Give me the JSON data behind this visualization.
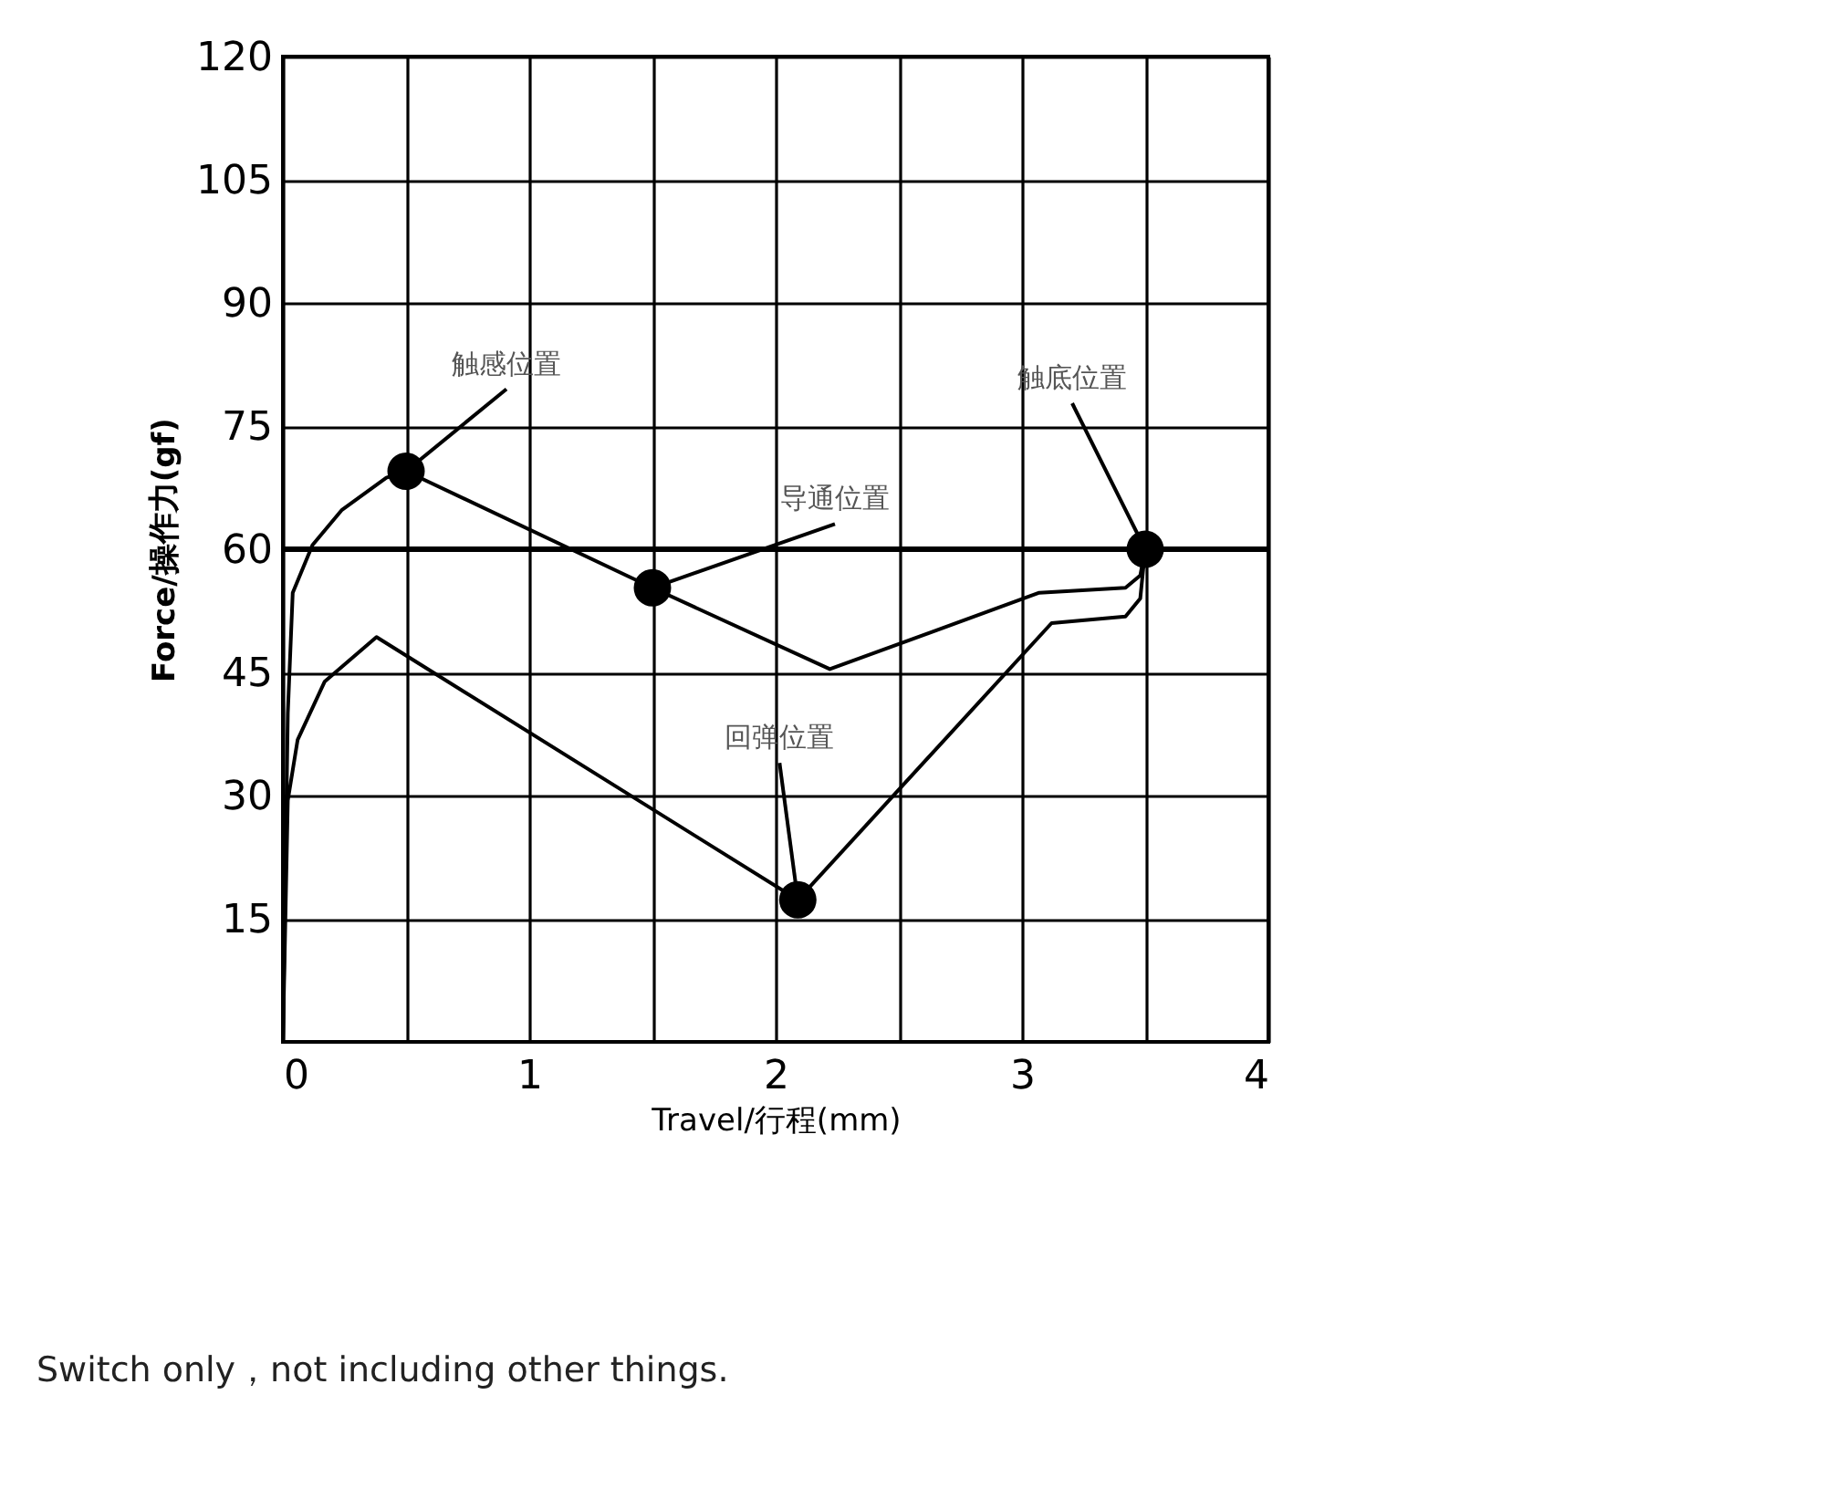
{
  "chart_data": {
    "type": "line",
    "xlabel": "Travel/行程(mm)",
    "ylabel": "Force/操作力(gf)",
    "xlim": [
      0,
      4
    ],
    "ylim": [
      0,
      120
    ],
    "xticks": [
      0,
      {
        "value": 0.5,
        "label": null
      },
      1,
      {
        "value": 1.5,
        "label": null
      },
      2,
      {
        "value": 2.5,
        "label": null
      },
      3,
      {
        "value": 3.5,
        "label": null
      },
      4
    ],
    "yticks": [
      15,
      30,
      45,
      60,
      75,
      90,
      105,
      120
    ],
    "grid": true,
    "line_style": "solid",
    "marker": "none",
    "series": [
      {
        "color": "#000000",
        "x": [
          0,
          0.02,
          0.04,
          0.12,
          0.24,
          0.42,
          0.5,
          1.5,
          2.22,
          3.07,
          3.42,
          3.48,
          3.5
        ],
        "values": [
          0,
          40,
          54.7,
          60.5,
          64.8,
          68.7,
          69.5,
          55.3,
          45.4,
          54.7,
          55.3,
          56.8,
          60
        ]
      },
      {
        "color": "#000000",
        "x": [
          0,
          0.02,
          0.06,
          0.17,
          0.38,
          2.09,
          3.12,
          3.42,
          3.48,
          3.5
        ],
        "values": [
          0,
          29.4,
          36.8,
          43.9,
          49.3,
          17.3,
          51,
          51.8,
          54,
          60
        ]
      },
      {
        "type": "scatter",
        "color": "#000000",
        "marker": "circle",
        "x": [
          0.5,
          1.5,
          2.09,
          3.5
        ],
        "values": [
          69.5,
          55.3,
          17.3,
          60
        ]
      }
    ],
    "ref_lines": [
      {
        "axis": "y",
        "value": 60,
        "label": null,
        "color": "#000000"
      }
    ],
    "annotations": [
      {
        "text": "触感位置",
        "x": 0.5,
        "y": 69.5
      },
      {
        "text": "导通位置",
        "x": 1.5,
        "y": 55.3
      },
      {
        "text": "回弹位置",
        "x": 2.09,
        "y": 17.3
      },
      {
        "text": "触底位置",
        "x": 3.5,
        "y": 60
      },
      "Switch only，not including other things."
    ]
  }
}
